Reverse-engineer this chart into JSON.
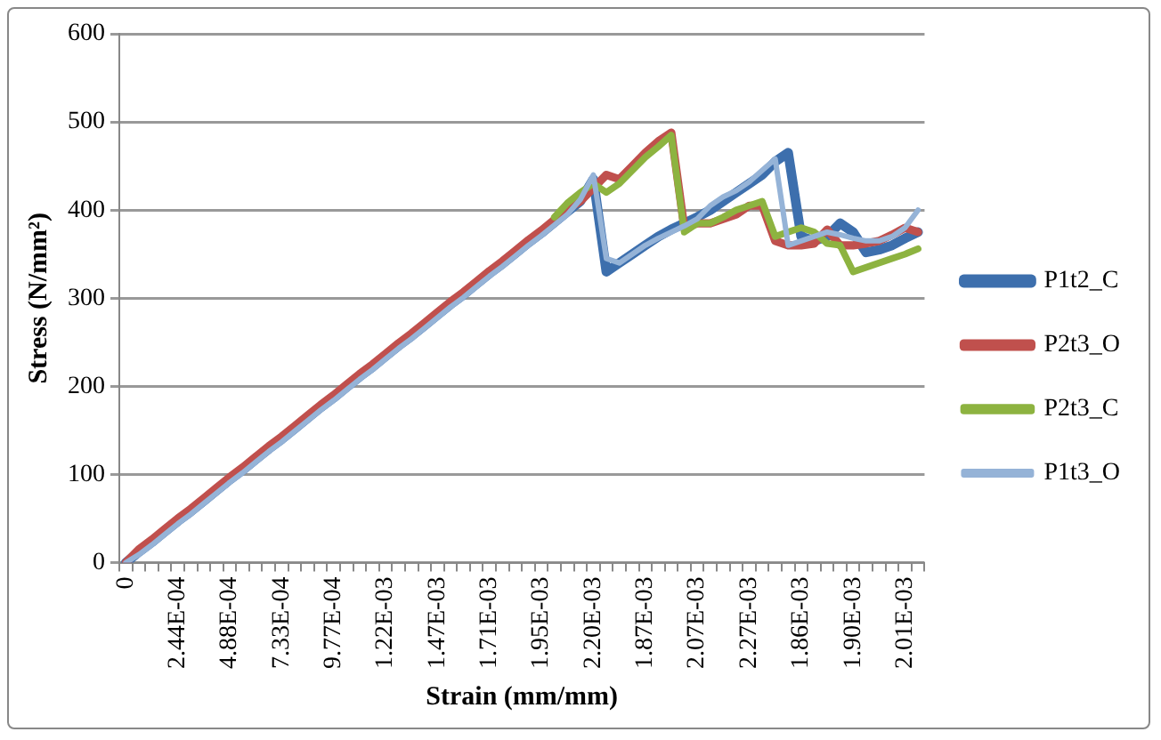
{
  "chart_data": {
    "type": "line",
    "xlabel": "Strain (mm/mm)",
    "ylabel": "Stress (N/mm²)",
    "categories": [
      "0",
      null,
      null,
      null,
      "2.44E-04",
      null,
      null,
      null,
      "4.88E-04",
      null,
      null,
      null,
      "7.33E-04",
      null,
      null,
      null,
      "9.77E-04",
      null,
      null,
      null,
      "1.22E-03",
      null,
      null,
      null,
      "1.47E-03",
      null,
      null,
      null,
      "1.71E-03",
      null,
      null,
      null,
      "1.95E-03",
      null,
      null,
      null,
      "2.20E-03",
      null,
      null,
      null,
      "1.87E-03",
      null,
      null,
      null,
      "2.07E-03",
      null,
      null,
      null,
      "2.27E-03",
      null,
      null,
      null,
      "1.86E-03",
      null,
      null,
      null,
      "1.90E-03",
      null,
      null,
      null,
      "2.01E-03",
      null
    ],
    "series": [
      {
        "name": "P1t2_C",
        "color": "#3d6fad",
        "values": [
          0,
          12,
          23,
          35,
          47,
          58,
          70,
          82,
          94,
          105,
          117,
          129,
          140,
          152,
          164,
          176,
          187,
          199,
          211,
          222,
          234,
          246,
          257,
          269,
          281,
          293,
          304,
          316,
          328,
          339,
          351,
          363,
          374,
          386,
          398,
          410,
          435,
          330,
          340,
          350,
          360,
          370,
          378,
          385,
          392,
          400,
          410,
          420,
          430,
          440,
          455,
          465,
          370,
          365,
          370,
          385,
          375,
          352,
          355,
          360,
          368,
          375
        ]
      },
      {
        "name": "P2t3_O",
        "color": "#c0504d",
        "values": [
          0,
          15,
          26,
          38,
          50,
          61,
          73,
          85,
          97,
          108,
          120,
          132,
          143,
          155,
          167,
          179,
          190,
          202,
          214,
          225,
          237,
          249,
          260,
          272,
          284,
          296,
          307,
          319,
          331,
          342,
          354,
          366,
          377,
          389,
          401,
          410,
          425,
          440,
          435,
          450,
          465,
          478,
          488,
          380,
          385,
          385,
          390,
          395,
          405,
          405,
          365,
          360,
          360,
          362,
          378,
          360,
          360,
          362,
          365,
          372,
          380,
          375
        ]
      },
      {
        "name": "P2t3_C",
        "color": "#8db340",
        "values": [
          null,
          null,
          null,
          null,
          null,
          null,
          null,
          null,
          null,
          null,
          null,
          null,
          null,
          null,
          null,
          null,
          null,
          null,
          null,
          null,
          null,
          null,
          null,
          null,
          null,
          null,
          null,
          null,
          null,
          null,
          null,
          null,
          null,
          392,
          408,
          420,
          430,
          420,
          430,
          445,
          460,
          472,
          485,
          375,
          385,
          385,
          392,
          400,
          405,
          410,
          370,
          375,
          380,
          375,
          362,
          360,
          330,
          335,
          340,
          345,
          350,
          356
        ]
      },
      {
        "name": "P1t3_O",
        "color": "#95b3d7",
        "values": [
          0,
          9,
          20,
          32,
          44,
          55,
          67,
          79,
          91,
          102,
          114,
          126,
          137,
          149,
          161,
          173,
          184,
          196,
          208,
          219,
          231,
          243,
          254,
          266,
          278,
          290,
          301,
          313,
          325,
          336,
          348,
          360,
          371,
          383,
          395,
          412,
          440,
          345,
          340,
          350,
          360,
          368,
          375,
          382,
          390,
          405,
          415,
          422,
          432,
          445,
          458,
          360,
          365,
          370,
          375,
          372,
          368,
          365,
          365,
          370,
          380,
          400
        ]
      }
    ],
    "ylim": [
      0,
      600
    ],
    "yticks": [
      0,
      100,
      200,
      300,
      400,
      500,
      600
    ],
    "grid": "y",
    "legend": "right",
    "marker": "none",
    "line_style": "solid"
  }
}
